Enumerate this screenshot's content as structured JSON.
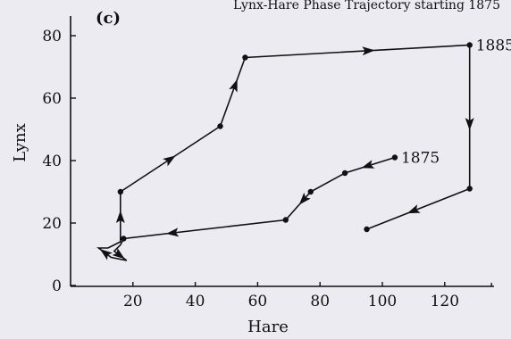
{
  "figure": {
    "top_text": "Lynx-Hare Phase Trajectory starting 1875"
  },
  "chart_data": {
    "type": "line",
    "panel_label": "(c)",
    "xlabel": "Hare",
    "ylabel": "Lynx",
    "xlim": [
      0,
      150
    ],
    "ylim": [
      0,
      80
    ],
    "xticks": [
      20,
      40,
      60,
      80,
      100,
      120
    ],
    "yticks": [
      0,
      20,
      40,
      60,
      80
    ],
    "grid": false,
    "series": [
      {
        "points": [
          {
            "x": 104,
            "y": 41
          },
          {
            "x": 88,
            "y": 36
          },
          {
            "x": 77,
            "y": 30
          },
          {
            "x": 69,
            "y": 21
          },
          {
            "x": 17,
            "y": 15
          },
          {
            "x": 16,
            "y": 13
          },
          {
            "x": 14,
            "y": 11
          },
          {
            "x": 18,
            "y": 8
          },
          {
            "x": 13,
            "y": 9
          },
          {
            "x": 9,
            "y": 12
          },
          {
            "x": 12,
            "y": 12
          },
          {
            "x": 16,
            "y": 14
          },
          {
            "x": 16,
            "y": 30
          },
          {
            "x": 48,
            "y": 51
          },
          {
            "x": 56,
            "y": 73
          },
          {
            "x": 128,
            "y": 77
          },
          {
            "x": 128,
            "y": 31
          },
          {
            "x": 95,
            "y": 18
          }
        ]
      }
    ],
    "annotations": [
      {
        "text": "1875",
        "x": 104,
        "y": 41
      },
      {
        "text": "1885",
        "x": 128,
        "y": 77
      }
    ]
  }
}
